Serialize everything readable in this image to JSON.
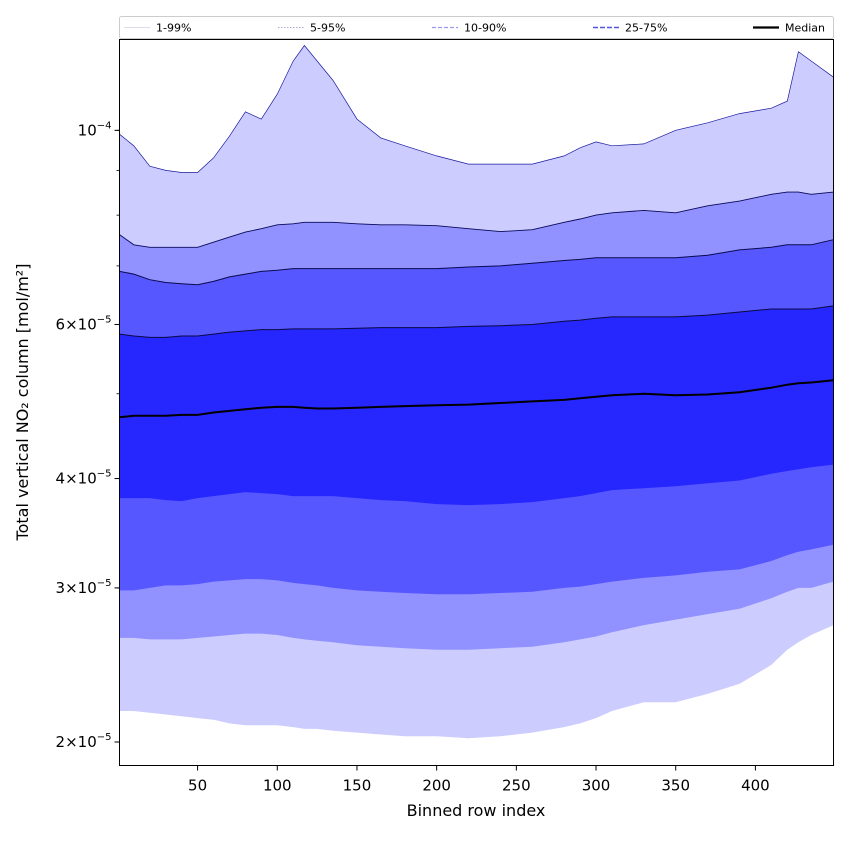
{
  "chart_data": {
    "type": "area",
    "xlabel": "Binned row index",
    "ylabel": "Total vertical NO₂ column [mol/m²]",
    "y_scale": "log",
    "xlim": [
      1,
      449
    ],
    "ylim": [
      1.88e-05,
      0.000127
    ],
    "x_ticks": [
      50,
      100,
      150,
      200,
      250,
      300,
      350,
      400
    ],
    "y_ticks": [
      {
        "value": 2e-05,
        "mantissa": "2",
        "exponent": "−5"
      },
      {
        "value": 3e-05,
        "mantissa": "3",
        "exponent": "−5"
      },
      {
        "value": 4e-05,
        "mantissa": "4",
        "exponent": "−5"
      },
      {
        "value": 6e-05,
        "mantissa": "6",
        "exponent": "−5"
      },
      {
        "value": 0.0001,
        "mantissa": "",
        "exponent": "−4"
      }
    ],
    "grid": false,
    "legend_position": "top (horizontal, above plot)",
    "legend": [
      {
        "label": "1-99%",
        "style": "thin solid",
        "color": "#d0d0e8"
      },
      {
        "label": "5-95%",
        "style": "thin dotted",
        "color": "#9090c8"
      },
      {
        "label": "10-90%",
        "style": "dashed",
        "color": "#9999ee"
      },
      {
        "label": "25-75%",
        "style": "dashed",
        "color": "#5555dd"
      },
      {
        "label": "Median",
        "style": "solid thick",
        "color": "#000000"
      }
    ],
    "band_colors": [
      "#ccccff",
      "#9191ff",
      "#5757ff",
      "#2626ff"
    ],
    "x": [
      1,
      10,
      20,
      30,
      40,
      50,
      60,
      70,
      80,
      90,
      100,
      110,
      117,
      125,
      135,
      150,
      165,
      180,
      200,
      220,
      240,
      260,
      280,
      290,
      300,
      310,
      330,
      350,
      370,
      390,
      410,
      420,
      427,
      435,
      449
    ],
    "series": [
      {
        "name": "1-99%",
        "role": "upper",
        "values": [
          9.9e-05,
          9.6e-05,
          9.1e-05,
          9e-05,
          8.95e-05,
          8.95e-05,
          9.3e-05,
          9.85e-05,
          0.000105,
          0.000103,
          0.00011,
          0.00012,
          0.000125,
          0.00012,
          0.000114,
          0.000103,
          9.8e-05,
          9.6e-05,
          9.35e-05,
          9.15e-05,
          9.15e-05,
          9.15e-05,
          9.35e-05,
          9.55e-05,
          9.7e-05,
          9.6e-05,
          9.65e-05,
          0.0001,
          0.000102,
          0.0001045,
          0.000106,
          0.000108,
          0.000123,
          0.00012,
          0.000115
        ]
      },
      {
        "name": "5-95%",
        "role": "upper",
        "values": [
          7.6e-05,
          7.4e-05,
          7.35e-05,
          7.35e-05,
          7.35e-05,
          7.35e-05,
          7.45e-05,
          7.55e-05,
          7.65e-05,
          7.72e-05,
          7.8e-05,
          7.82e-05,
          7.85e-05,
          7.85e-05,
          7.85e-05,
          7.82e-05,
          7.8e-05,
          7.8e-05,
          7.78e-05,
          7.72e-05,
          7.66e-05,
          7.7e-05,
          7.85e-05,
          7.92e-05,
          8e-05,
          8.05e-05,
          8.1e-05,
          8.05e-05,
          8.2e-05,
          8.3e-05,
          8.45e-05,
          8.5e-05,
          8.5e-05,
          8.45e-05,
          8.5e-05
        ]
      },
      {
        "name": "10-90%",
        "role": "upper",
        "values": [
          6.9e-05,
          6.85e-05,
          6.75e-05,
          6.7e-05,
          6.68e-05,
          6.66e-05,
          6.72e-05,
          6.8e-05,
          6.85e-05,
          6.9e-05,
          6.92e-05,
          6.95e-05,
          6.95e-05,
          6.95e-05,
          6.95e-05,
          6.95e-05,
          6.95e-05,
          6.95e-05,
          6.95e-05,
          6.98e-05,
          7e-05,
          7.05e-05,
          7.1e-05,
          7.12e-05,
          7.15e-05,
          7.15e-05,
          7.15e-05,
          7.15e-05,
          7.2e-05,
          7.3e-05,
          7.35e-05,
          7.4e-05,
          7.4e-05,
          7.4e-05,
          7.5e-05
        ]
      },
      {
        "name": "25-75%",
        "role": "upper",
        "values": [
          5.85e-05,
          5.82e-05,
          5.8e-05,
          5.8e-05,
          5.82e-05,
          5.82e-05,
          5.85e-05,
          5.88e-05,
          5.9e-05,
          5.92e-05,
          5.92e-05,
          5.93e-05,
          5.93e-05,
          5.93e-05,
          5.93e-05,
          5.94e-05,
          5.95e-05,
          5.95e-05,
          5.95e-05,
          5.97e-05,
          5.98e-05,
          6e-05,
          6.05e-05,
          6.07e-05,
          6.1e-05,
          6.12e-05,
          6.12e-05,
          6.12e-05,
          6.15e-05,
          6.2e-05,
          6.25e-05,
          6.25e-05,
          6.25e-05,
          6.25e-05,
          6.3e-05
        ]
      },
      {
        "name": "Median",
        "role": "median",
        "values": [
          4.7e-05,
          4.72e-05,
          4.72e-05,
          4.72e-05,
          4.73e-05,
          4.73e-05,
          4.76e-05,
          4.78e-05,
          4.8e-05,
          4.82e-05,
          4.83e-05,
          4.83e-05,
          4.82e-05,
          4.81e-05,
          4.81e-05,
          4.82e-05,
          4.83e-05,
          4.84e-05,
          4.85e-05,
          4.86e-05,
          4.88e-05,
          4.9e-05,
          4.92e-05,
          4.94e-05,
          4.96e-05,
          4.98e-05,
          5e-05,
          4.98e-05,
          4.99e-05,
          5.02e-05,
          5.08e-05,
          5.12e-05,
          5.14e-05,
          5.15e-05,
          5.18e-05
        ]
      },
      {
        "name": "25-75%",
        "role": "lower",
        "values": [
          3.8e-05,
          3.8e-05,
          3.8e-05,
          3.78e-05,
          3.77e-05,
          3.8e-05,
          3.82e-05,
          3.84e-05,
          3.86e-05,
          3.85e-05,
          3.84e-05,
          3.82e-05,
          3.82e-05,
          3.82e-05,
          3.82e-05,
          3.8e-05,
          3.78e-05,
          3.77e-05,
          3.74e-05,
          3.73e-05,
          3.74e-05,
          3.76e-05,
          3.8e-05,
          3.82e-05,
          3.85e-05,
          3.88e-05,
          3.9e-05,
          3.92e-05,
          3.95e-05,
          3.98e-05,
          4.05e-05,
          4.08e-05,
          4.1e-05,
          4.12e-05,
          4.15e-05
        ]
      },
      {
        "name": "10-90%",
        "role": "lower",
        "values": [
          2.98e-05,
          2.98e-05,
          3e-05,
          3.02e-05,
          3.02e-05,
          3.03e-05,
          3.05e-05,
          3.06e-05,
          3.07e-05,
          3.07e-05,
          3.06e-05,
          3.04e-05,
          3.03e-05,
          3.02e-05,
          3e-05,
          2.98e-05,
          2.97e-05,
          2.96e-05,
          2.95e-05,
          2.95e-05,
          2.96e-05,
          2.97e-05,
          3e-05,
          3.01e-05,
          3.03e-05,
          3.05e-05,
          3.08e-05,
          3.1e-05,
          3.13e-05,
          3.15e-05,
          3.22e-05,
          3.27e-05,
          3.3e-05,
          3.32e-05,
          3.36e-05
        ]
      },
      {
        "name": "5-95%",
        "role": "lower",
        "values": [
          2.63e-05,
          2.63e-05,
          2.62e-05,
          2.62e-05,
          2.62e-05,
          2.63e-05,
          2.64e-05,
          2.65e-05,
          2.66e-05,
          2.66e-05,
          2.65e-05,
          2.63e-05,
          2.62e-05,
          2.61e-05,
          2.6e-05,
          2.58e-05,
          2.57e-05,
          2.56e-05,
          2.55e-05,
          2.55e-05,
          2.56e-05,
          2.57e-05,
          2.6e-05,
          2.62e-05,
          2.64e-05,
          2.67e-05,
          2.72e-05,
          2.76e-05,
          2.8e-05,
          2.84e-05,
          2.92e-05,
          2.97e-05,
          3e-05,
          3e-05,
          3.05e-05
        ]
      },
      {
        "name": "1-99%",
        "role": "lower",
        "values": [
          2.17e-05,
          2.17e-05,
          2.16e-05,
          2.15e-05,
          2.14e-05,
          2.13e-05,
          2.12e-05,
          2.1e-05,
          2.09e-05,
          2.09e-05,
          2.09e-05,
          2.08e-05,
          2.07e-05,
          2.07e-05,
          2.06e-05,
          2.05e-05,
          2.04e-05,
          2.03e-05,
          2.03e-05,
          2.02e-05,
          2.03e-05,
          2.05e-05,
          2.08e-05,
          2.1e-05,
          2.13e-05,
          2.17e-05,
          2.22e-05,
          2.22e-05,
          2.27e-05,
          2.33e-05,
          2.45e-05,
          2.55e-05,
          2.6e-05,
          2.65e-05,
          2.72e-05
        ]
      }
    ]
  }
}
